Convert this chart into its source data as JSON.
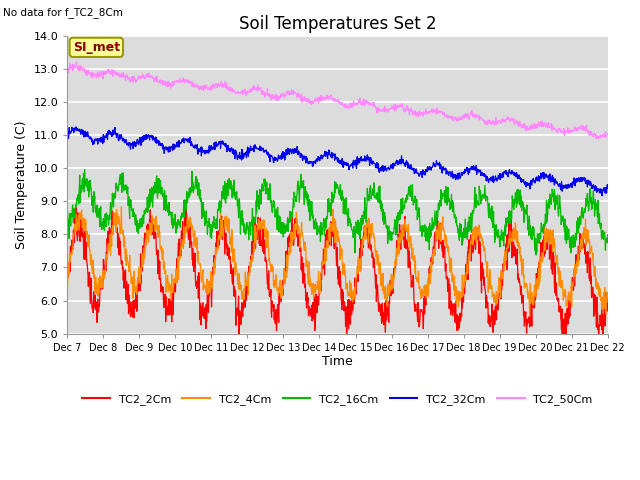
{
  "title": "Soil Temperatures Set 2",
  "ylabel": "Soil Temperature (C)",
  "xlabel": "Time",
  "top_left_text": "No data for f_TC2_8Cm",
  "annotation_text": "SI_met",
  "annotation_box_color": "#FFFF99",
  "annotation_border_color": "#999900",
  "annotation_text_color": "#880000",
  "ylim": [
    5.0,
    14.0
  ],
  "yticks": [
    5.0,
    6.0,
    7.0,
    8.0,
    9.0,
    10.0,
    11.0,
    12.0,
    13.0,
    14.0
  ],
  "xtick_labels": [
    "Dec 7",
    "Dec 8",
    "Dec 9",
    "Dec 10",
    "Dec 11",
    "Dec 12",
    "Dec 13",
    "Dec 14",
    "Dec 15",
    "Dec 16",
    "Dec 17",
    "Dec 18",
    "Dec 19",
    "Dec 20",
    "Dec 21",
    "Dec 22"
  ],
  "series": [
    {
      "label": "TC2_2Cm",
      "color": "#FF0000"
    },
    {
      "label": "TC2_4Cm",
      "color": "#FF8C00"
    },
    {
      "label": "TC2_16Cm",
      "color": "#00BB00"
    },
    {
      "label": "TC2_32Cm",
      "color": "#0000EE"
    },
    {
      "label": "TC2_50Cm",
      "color": "#FF88FF"
    }
  ],
  "bg_color": "#FFFFFF",
  "plot_bg_color": "#DCDCDC",
  "grid_color": "#FFFFFF",
  "title_fontsize": 12,
  "axis_fontsize": 9,
  "tick_fontsize": 8,
  "legend_fontsize": 8
}
